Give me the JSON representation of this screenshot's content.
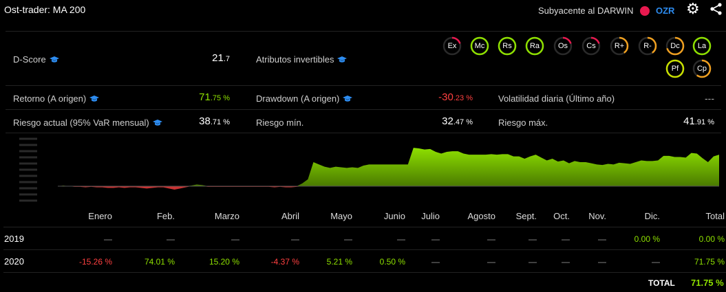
{
  "header": {
    "title": "Ost-trader: MA 200",
    "underlying_label": "Subyacente al DARWIN",
    "ticker": "OZR"
  },
  "stats": {
    "dscore": {
      "label": "D-Score",
      "int": "21",
      "dec": ".7"
    },
    "atributos": {
      "label": "Atributos invertibles"
    },
    "retorno": {
      "label": "Retorno (A origen)",
      "int": "71",
      "dec": ".75 %"
    },
    "drawdown": {
      "label": "Drawdown (A origen)",
      "int": "-30",
      "dec": ".23 %"
    },
    "volatilidad": {
      "label": "Volatilidad diaria (Último año)",
      "value": "---"
    },
    "riesgo_actual": {
      "label": "Riesgo actual (95% VaR mensual)",
      "int": "38",
      "dec": ".71 %"
    },
    "riesgo_min": {
      "label": "Riesgo mín.",
      "int": "32",
      "dec": ".47 %"
    },
    "riesgo_max": {
      "label": "Riesgo máx.",
      "int": "41",
      "dec": ".91 %"
    }
  },
  "badges": [
    {
      "label": "Ex",
      "score": 0.2,
      "color": "#e8194f"
    },
    {
      "label": "Mc",
      "score": 1.0,
      "color": "#8ee000"
    },
    {
      "label": "Rs",
      "score": 1.0,
      "color": "#8ee000"
    },
    {
      "label": "Ra",
      "score": 1.0,
      "color": "#8ee000"
    },
    {
      "label": "Os",
      "score": 0.2,
      "color": "#e8194f"
    },
    {
      "label": "Cs",
      "score": 0.2,
      "color": "#e8194f"
    },
    {
      "label": "R+",
      "score": 0.4,
      "color": "#f0a020"
    },
    {
      "label": "R-",
      "score": 0.4,
      "color": "#f0a020"
    },
    {
      "label": "Dc",
      "score": 0.7,
      "color": "#f0a020"
    },
    {
      "label": "La",
      "score": 1.0,
      "color": "#8ee000"
    },
    {
      "label": "Pf",
      "score": 1.0,
      "color": "#c8e000"
    },
    {
      "label": "Cp",
      "score": 0.6,
      "color": "#f0a020"
    }
  ],
  "chart_data": {
    "type": "area",
    "values": [
      0,
      1,
      0,
      -1,
      -1,
      -2,
      -1,
      -2,
      -2,
      -3,
      -3,
      -2,
      -3,
      -2,
      -2,
      -3,
      -4,
      -3,
      -2,
      -2,
      -4,
      -6,
      -4,
      -2,
      1,
      3,
      2,
      -1,
      -1,
      -1,
      -1,
      -1,
      -1,
      -1,
      -1,
      -1,
      -1,
      -1,
      -1,
      -2,
      -1,
      -2,
      -2,
      -1,
      5,
      12,
      42,
      38,
      34,
      32,
      34,
      33,
      32,
      33,
      32,
      36,
      38,
      38,
      38,
      38,
      38,
      38,
      38,
      38,
      67,
      66,
      64,
      65,
      60,
      57,
      60,
      61,
      61,
      57,
      55,
      55,
      55,
      55,
      56,
      55,
      56,
      56,
      52,
      52,
      48,
      52,
      55,
      50,
      45,
      48,
      43,
      45,
      40,
      44,
      42,
      42,
      40,
      38,
      37,
      39,
      38,
      41,
      40,
      39,
      42,
      45,
      44,
      44,
      45,
      53,
      53,
      51,
      51,
      50,
      58,
      57,
      49,
      42,
      52,
      55
    ],
    "ylim": [
      -30,
      90
    ],
    "pos_color": "#8ee000",
    "neg_color": "#c83232"
  },
  "table": {
    "headers": [
      "Enero",
      "Feb.",
      "Marzo",
      "Abril",
      "Mayo",
      "Junio",
      "Julio",
      "Agosto",
      "Sept.",
      "Oct.",
      "Nov.",
      "Dic.",
      "Total"
    ],
    "rows": [
      {
        "year": "2019",
        "cells": [
          {
            "v": "—",
            "c": "dash"
          },
          {
            "v": "—",
            "c": "dash"
          },
          {
            "v": "—",
            "c": "dash"
          },
          {
            "v": "—",
            "c": "dash"
          },
          {
            "v": "—",
            "c": "dash"
          },
          {
            "v": "—",
            "c": "dash"
          },
          {
            "v": "—",
            "c": "dash"
          },
          {
            "v": "—",
            "c": "dash"
          },
          {
            "v": "—",
            "c": "dash"
          },
          {
            "v": "—",
            "c": "dash"
          },
          {
            "v": "—",
            "c": "dash"
          },
          {
            "v": "0.00 %",
            "c": "pos"
          },
          {
            "v": "0.00 %",
            "c": "pos"
          }
        ]
      },
      {
        "year": "2020",
        "cells": [
          {
            "v": "-15.26 %",
            "c": "neg"
          },
          {
            "v": "74.01 %",
            "c": "pos"
          },
          {
            "v": "15.20 %",
            "c": "pos"
          },
          {
            "v": "-4.37 %",
            "c": "neg"
          },
          {
            "v": "5.21 %",
            "c": "pos"
          },
          {
            "v": "0.50 %",
            "c": "pos"
          },
          {
            "v": "—",
            "c": "dash"
          },
          {
            "v": "—",
            "c": "dash"
          },
          {
            "v": "—",
            "c": "dash"
          },
          {
            "v": "—",
            "c": "dash"
          },
          {
            "v": "—",
            "c": "dash"
          },
          {
            "v": "—",
            "c": "dash"
          },
          {
            "v": "71.75 %",
            "c": "pos"
          }
        ]
      }
    ],
    "total_label": "TOTAL",
    "total_value": "71.75 %"
  }
}
